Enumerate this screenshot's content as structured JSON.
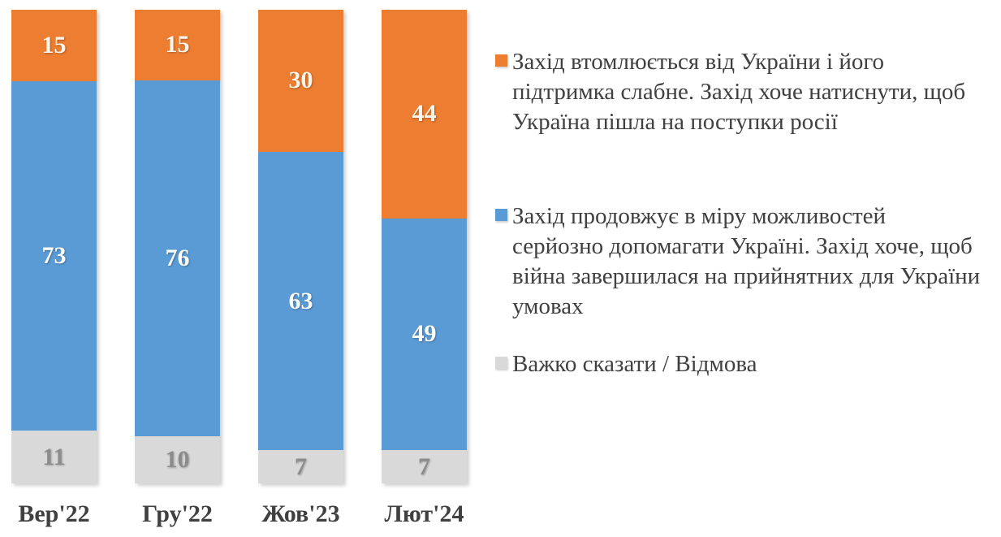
{
  "chart_data": {
    "type": "bar",
    "stacked": true,
    "orientation": "vertical",
    "grid": false,
    "legend_position": "right",
    "title": "",
    "xlabel": "",
    "ylabel": "",
    "ylim": [
      0,
      100
    ],
    "categories": [
      "Вер'22",
      "Гру'22",
      "Жов'23",
      "Лют'24"
    ],
    "series": [
      {
        "name": "Захід втомлюється від України і його підтримка слабне. Захід хоче натиснути, щоб Україна пішла на поступки росії",
        "values": [
          15,
          15,
          30,
          44
        ],
        "color": "#ED7D31",
        "label_color": "#FCF6EA"
      },
      {
        "name": "Захід продовжує в міру можливостей серйозно допомагати Україні. Захід хоче, щоб війна завершилася на прийнятних для України умовах",
        "values": [
          73,
          76,
          63,
          49
        ],
        "color": "#5B9BD5",
        "label_color": "#FDFDF8"
      },
      {
        "name": "Важко сказати / Відмова",
        "values": [
          11,
          10,
          7,
          7
        ],
        "color": "#D9D9D9",
        "label_color": "#8C8C8C"
      }
    ],
    "axis_label_color": "#404040",
    "legend_text_color": "#404040"
  }
}
